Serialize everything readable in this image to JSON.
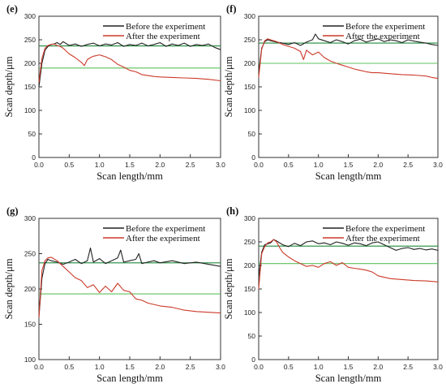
{
  "colors": {
    "before": "#222222",
    "after": "#cc3a2a",
    "before_ref": "#1f8a3a",
    "after_ref": "#5cc05c",
    "axis": "#333333"
  },
  "chart_data": [
    {
      "type": "line",
      "panel_label": "(e)",
      "xlabel": "Scan length/mm",
      "ylabel": "Scan depth/μm",
      "xlim": [
        0,
        3.0
      ],
      "ylim": [
        0,
        300
      ],
      "x_ticks": [
        "0.0",
        "0.5",
        "1.0",
        "1.5",
        "2.0",
        "2.5",
        "3.0"
      ],
      "y_ticks": [
        "0",
        "50",
        "100",
        "150",
        "200",
        "250",
        "300"
      ],
      "legend_position": "top-right",
      "reference_lines": [
        {
          "series": "Before the experiment",
          "y": 237
        },
        {
          "series": "After the experiment",
          "y": 190
        }
      ],
      "series": [
        {
          "name": "Before the experiment",
          "x": [
            0.0,
            0.05,
            0.1,
            0.15,
            0.2,
            0.25,
            0.3,
            0.35,
            0.4,
            0.5,
            0.6,
            0.7,
            0.8,
            0.9,
            1.0,
            1.1,
            1.2,
            1.3,
            1.4,
            1.5,
            1.6,
            1.7,
            1.8,
            1.9,
            2.0,
            2.1,
            2.2,
            2.3,
            2.4,
            2.5,
            2.6,
            2.7,
            2.8,
            2.9,
            3.0
          ],
          "y": [
            150,
            200,
            228,
            236,
            240,
            241,
            244,
            240,
            246,
            238,
            241,
            236,
            240,
            243,
            237,
            241,
            239,
            244,
            236,
            240,
            238,
            243,
            237,
            240,
            244,
            236,
            241,
            238,
            243,
            236,
            240,
            238,
            241,
            234,
            229
          ]
        },
        {
          "name": "After the experiment",
          "x": [
            0.0,
            0.05,
            0.1,
            0.15,
            0.2,
            0.25,
            0.3,
            0.35,
            0.4,
            0.5,
            0.6,
            0.7,
            0.75,
            0.8,
            0.85,
            0.9,
            1.0,
            1.1,
            1.2,
            1.3,
            1.4,
            1.5,
            1.6,
            1.7,
            1.8,
            1.9,
            2.0,
            2.2,
            2.4,
            2.6,
            2.8,
            3.0
          ],
          "y": [
            160,
            210,
            232,
            238,
            240,
            241,
            238,
            236,
            232,
            220,
            212,
            202,
            195,
            208,
            212,
            215,
            218,
            214,
            208,
            198,
            192,
            185,
            182,
            176,
            174,
            172,
            171,
            170,
            169,
            168,
            166,
            163
          ]
        }
      ]
    },
    {
      "type": "line",
      "panel_label": "(f)",
      "xlabel": "Scan length/mm",
      "ylabel": "Scan depth/μm",
      "xlim": [
        0,
        3.0
      ],
      "ylim": [
        0,
        300
      ],
      "x_ticks": [
        "0.0",
        "0.5",
        "1.0",
        "1.5",
        "2.0",
        "2.5",
        "3.0"
      ],
      "y_ticks": [
        "0",
        "50",
        "100",
        "150",
        "200",
        "250",
        "300"
      ],
      "legend_position": "top-right",
      "reference_lines": [
        {
          "series": "Before the experiment",
          "y": 243
        },
        {
          "series": "After the experiment",
          "y": 200
        }
      ],
      "series": [
        {
          "name": "Before the experiment",
          "x": [
            0.0,
            0.05,
            0.1,
            0.15,
            0.2,
            0.3,
            0.4,
            0.5,
            0.6,
            0.7,
            0.8,
            0.9,
            0.95,
            1.0,
            1.1,
            1.2,
            1.3,
            1.4,
            1.5,
            1.6,
            1.7,
            1.8,
            1.9,
            2.0,
            2.1,
            2.2,
            2.3,
            2.4,
            2.5,
            2.6,
            2.7,
            2.8,
            2.9,
            3.0
          ],
          "y": [
            180,
            232,
            246,
            250,
            248,
            245,
            243,
            240,
            244,
            238,
            245,
            250,
            262,
            252,
            248,
            244,
            250,
            246,
            241,
            248,
            251,
            245,
            249,
            252,
            246,
            250,
            248,
            244,
            250,
            247,
            245,
            243,
            240,
            238
          ]
        },
        {
          "name": "After the experiment",
          "x": [
            0.0,
            0.05,
            0.1,
            0.15,
            0.2,
            0.3,
            0.4,
            0.5,
            0.6,
            0.7,
            0.75,
            0.8,
            0.9,
            1.0,
            1.1,
            1.2,
            1.3,
            1.4,
            1.5,
            1.6,
            1.7,
            1.8,
            1.9,
            2.0,
            2.2,
            2.4,
            2.6,
            2.8,
            2.9,
            3.0
          ],
          "y": [
            170,
            230,
            248,
            252,
            250,
            246,
            240,
            236,
            232,
            225,
            208,
            228,
            218,
            224,
            212,
            205,
            200,
            196,
            192,
            188,
            185,
            182,
            180,
            180,
            178,
            176,
            175,
            173,
            170,
            168
          ]
        }
      ]
    },
    {
      "type": "line",
      "panel_label": "(g)",
      "xlabel": "Scan length/mm",
      "ylabel": "Scan depth/μm",
      "xlim": [
        0,
        3.0
      ],
      "ylim": [
        100,
        300
      ],
      "x_ticks": [
        "0.0",
        "0.5",
        "1.0",
        "1.5",
        "2.0",
        "2.5",
        "3.0"
      ],
      "y_ticks": [
        "100",
        "150",
        "200",
        "250",
        "300"
      ],
      "legend_position": "top-right",
      "reference_lines": [
        {
          "series": "Before the experiment",
          "y": 237
        },
        {
          "series": "After the experiment",
          "y": 193
        }
      ],
      "series": [
        {
          "name": "Before the experiment",
          "x": [
            0.0,
            0.05,
            0.1,
            0.15,
            0.2,
            0.3,
            0.4,
            0.5,
            0.6,
            0.7,
            0.8,
            0.85,
            0.9,
            1.0,
            1.1,
            1.2,
            1.3,
            1.35,
            1.4,
            1.5,
            1.6,
            1.65,
            1.7,
            1.8,
            1.9,
            2.0,
            2.2,
            2.4,
            2.6,
            2.8,
            3.0
          ],
          "y": [
            160,
            215,
            236,
            242,
            240,
            238,
            235,
            238,
            242,
            236,
            240,
            258,
            238,
            243,
            236,
            240,
            244,
            255,
            238,
            240,
            242,
            250,
            236,
            238,
            240,
            237,
            240,
            236,
            238,
            235,
            232
          ]
        },
        {
          "name": "After the experiment",
          "x": [
            0.0,
            0.05,
            0.1,
            0.15,
            0.2,
            0.3,
            0.4,
            0.5,
            0.6,
            0.7,
            0.8,
            0.9,
            1.0,
            1.1,
            1.2,
            1.3,
            1.4,
            1.5,
            1.6,
            1.7,
            1.8,
            1.9,
            2.0,
            2.2,
            2.4,
            2.6,
            2.8,
            3.0
          ],
          "y": [
            160,
            226,
            240,
            244,
            245,
            240,
            232,
            224,
            216,
            212,
            202,
            206,
            195,
            204,
            196,
            208,
            198,
            196,
            186,
            184,
            180,
            178,
            176,
            174,
            170,
            168,
            167,
            166
          ]
        }
      ]
    },
    {
      "type": "line",
      "panel_label": "(h)",
      "xlabel": "Scan length/mm",
      "ylabel": "Scan depth/μm",
      "xlim": [
        0,
        3.0
      ],
      "ylim": [
        0,
        300
      ],
      "x_ticks": [
        "0.0",
        "0.5",
        "1.0",
        "1.5",
        "2.0",
        "2.5",
        "3.0"
      ],
      "y_ticks": [
        "0",
        "50",
        "100",
        "150",
        "200",
        "250",
        "300"
      ],
      "legend_position": "top-right",
      "reference_lines": [
        {
          "series": "Before the experiment",
          "y": 241
        },
        {
          "series": "After the experiment",
          "y": 204
        }
      ],
      "series": [
        {
          "name": "Before the experiment",
          "x": [
            0.0,
            0.05,
            0.1,
            0.15,
            0.2,
            0.25,
            0.3,
            0.4,
            0.5,
            0.6,
            0.7,
            0.8,
            0.9,
            1.0,
            1.1,
            1.2,
            1.3,
            1.4,
            1.5,
            1.6,
            1.7,
            1.8,
            1.9,
            2.0,
            2.1,
            2.2,
            2.3,
            2.4,
            2.5,
            2.6,
            2.7,
            2.8,
            2.9,
            3.0
          ],
          "y": [
            175,
            228,
            244,
            246,
            248,
            255,
            252,
            244,
            240,
            247,
            242,
            250,
            252,
            246,
            248,
            244,
            250,
            247,
            243,
            248,
            246,
            242,
            248,
            250,
            244,
            238,
            232,
            236,
            238,
            234,
            236,
            233,
            235,
            232
          ]
        },
        {
          "name": "After the experiment",
          "x": [
            0.0,
            0.05,
            0.1,
            0.15,
            0.2,
            0.25,
            0.3,
            0.35,
            0.4,
            0.5,
            0.6,
            0.7,
            0.8,
            0.9,
            1.0,
            1.1,
            1.2,
            1.3,
            1.4,
            1.5,
            1.6,
            1.7,
            1.8,
            1.9,
            2.0,
            2.2,
            2.4,
            2.6,
            2.8,
            3.0
          ],
          "y": [
            150,
            225,
            240,
            248,
            250,
            255,
            250,
            238,
            228,
            218,
            210,
            204,
            198,
            200,
            196,
            204,
            208,
            200,
            206,
            196,
            194,
            192,
            190,
            186,
            178,
            172,
            170,
            168,
            167,
            165
          ]
        }
      ]
    }
  ]
}
